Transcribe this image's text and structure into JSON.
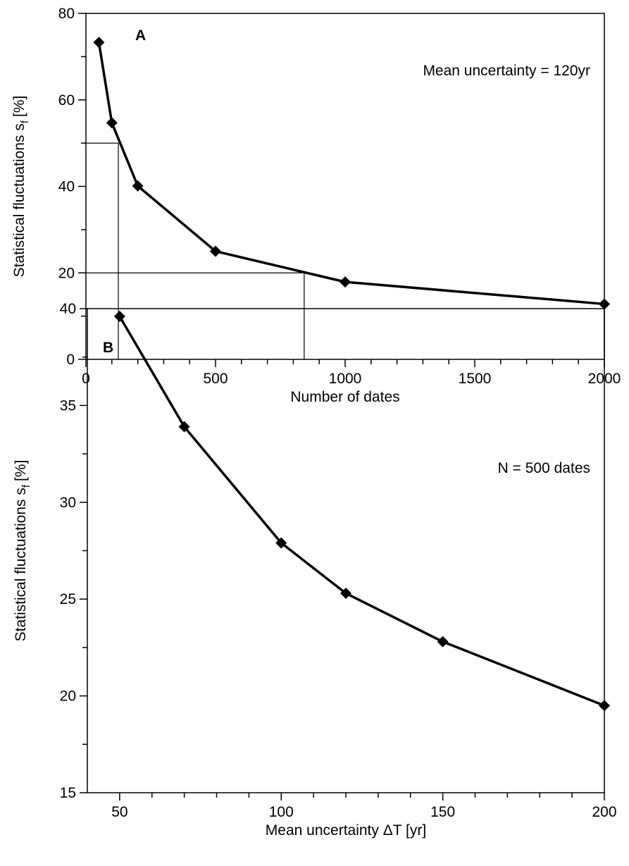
{
  "chart_data": [
    {
      "type": "line",
      "panel_label": "A",
      "annotation": "Mean uncertainty = 120yr",
      "xlabel": "Number of dates",
      "ylabel": [
        "Statistical fluctuations s",
        "f",
        "[%]"
      ],
      "x": [
        50,
        100,
        200,
        500,
        1000,
        2000
      ],
      "series": [
        {
          "color": "#000000",
          "values": [
            73.3,
            54.7,
            40.1,
            25,
            17.9,
            12.8
          ]
        }
      ],
      "xlim": [
        0,
        2000
      ],
      "xticks": [
        0,
        500,
        1000,
        1500,
        2000
      ],
      "xminorticks": [
        100,
        200,
        300,
        400,
        600,
        700,
        800,
        900,
        1100,
        1200,
        1300,
        1400,
        1600,
        1700,
        1800,
        1900
      ],
      "ylim": [
        0,
        80
      ],
      "yticks": [
        0,
        20,
        40,
        60,
        80
      ],
      "yminorticks": [
        10,
        30,
        50,
        70
      ],
      "guides": [
        {
          "x": 125,
          "y": 50
        },
        {
          "x": 842,
          "y": 20
        }
      ]
    },
    {
      "type": "line",
      "panel_label": "B",
      "annotation": "N = 500 dates",
      "xlabel": "Mean uncertainty ΔT [yr]",
      "ylabel": [
        "Statistical fluctuations s",
        "f",
        "[%]"
      ],
      "x": [
        50,
        70,
        100,
        120,
        150,
        200
      ],
      "series": [
        {
          "color": "#000000",
          "values": [
            39.6,
            33.9,
            27.9,
            25.3,
            22.8,
            19.5
          ]
        }
      ],
      "xlim": [
        40,
        200
      ],
      "xticks": [
        50,
        100,
        150,
        200
      ],
      "xminorticks": [
        60,
        70,
        80,
        90,
        110,
        120,
        130,
        140,
        160,
        170,
        180,
        190
      ],
      "ylim": [
        15,
        40
      ],
      "yticks": [
        15,
        20,
        25,
        30,
        35,
        40
      ],
      "yminorticks": [
        17.5,
        22.5,
        27.5,
        32.5,
        37.5
      ]
    }
  ]
}
